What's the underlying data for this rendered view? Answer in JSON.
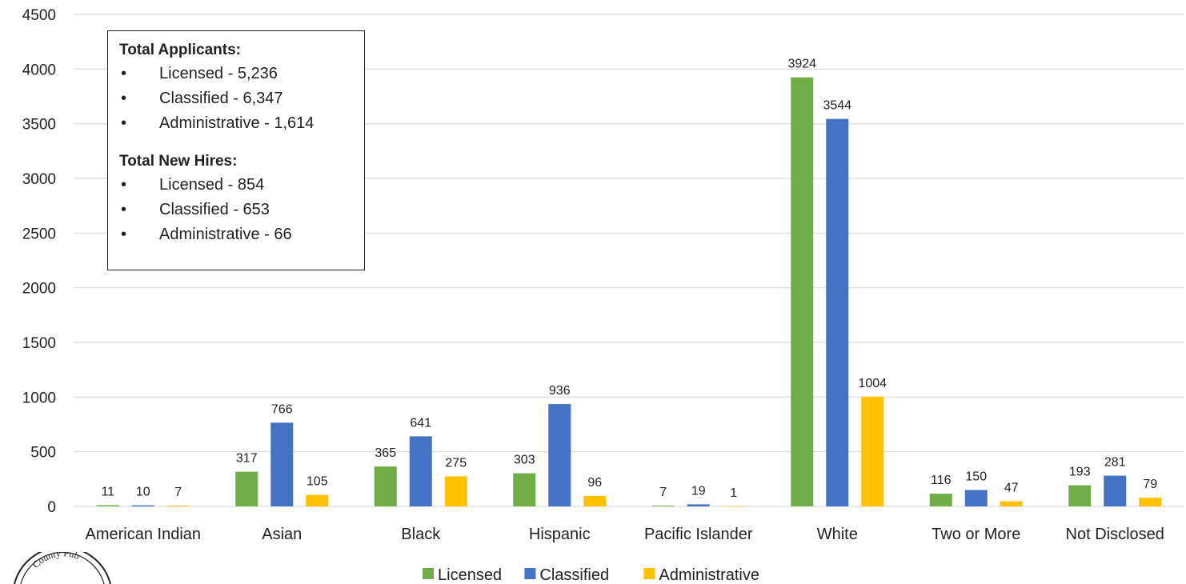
{
  "info_box": {
    "applicants_title": "Total Applicants:",
    "applicants": [
      "Licensed - 5,236",
      "Classified - 6,347",
      "Administrative - 1,614"
    ],
    "hires_title": "Total New Hires:",
    "hires": [
      "Licensed - 854",
      "Classified - 653",
      "Administrative - 66"
    ]
  },
  "chart_data": {
    "type": "bar",
    "categories": [
      "American Indian",
      "Asian",
      "Black",
      "Hispanic",
      "Pacific Islander",
      "White",
      "Two or More",
      "Not Disclosed"
    ],
    "series": [
      {
        "name": "Licensed",
        "color": "#70ad47",
        "values": [
          11,
          317,
          365,
          303,
          7,
          3924,
          116,
          193
        ]
      },
      {
        "name": "Classified",
        "color": "#4472c4",
        "values": [
          10,
          766,
          641,
          936,
          19,
          3544,
          150,
          281
        ]
      },
      {
        "name": "Administrative",
        "color": "#ffc000",
        "values": [
          7,
          105,
          275,
          96,
          1,
          1004,
          47,
          79
        ]
      }
    ],
    "ylim": [
      0,
      4500
    ],
    "yticks": [
      0,
      500,
      1000,
      1500,
      2000,
      2500,
      3000,
      3500,
      4000,
      4500
    ],
    "grid": true,
    "legend_position": "bottom"
  },
  "seal": {
    "text": "County Pub"
  }
}
